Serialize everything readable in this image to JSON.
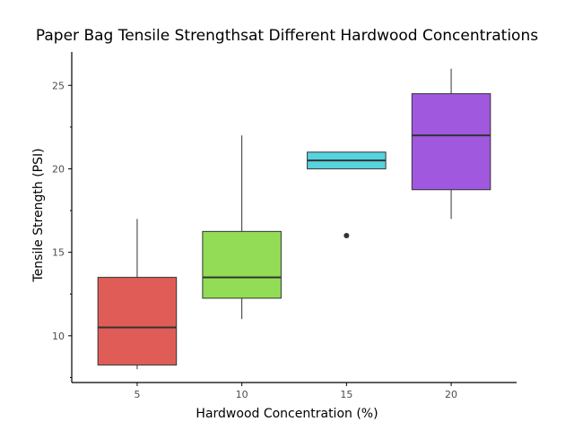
{
  "chart_data": {
    "type": "box",
    "title": "Paper Bag Tensile Strengthsat Different Hardwood Concentrations",
    "xlabel": "Hardwood Concentration (%)",
    "ylabel": "Tensile Strength (PSI)",
    "ylim": [
      7.2,
      27.0
    ],
    "y_major_ticks": [
      10,
      15,
      20,
      25
    ],
    "y_minor_ticks": [
      7.5,
      12.5,
      17.5,
      22.5
    ],
    "categories": [
      "5",
      "10",
      "15",
      "20"
    ],
    "boxes": [
      {
        "category": "5",
        "min": 8.0,
        "q1": 8.25,
        "median": 10.5,
        "q3": 13.5,
        "max": 17.0,
        "outliers": [],
        "color": "#df5d56"
      },
      {
        "category": "10",
        "min": 11.0,
        "q1": 12.25,
        "median": 13.5,
        "q3": 16.25,
        "max": 22.0,
        "outliers": [],
        "color": "#92dd55"
      },
      {
        "category": "15",
        "min": 20.0,
        "q1": 20.0,
        "median": 20.5,
        "q3": 21.0,
        "max": 21.0,
        "outliers": [
          16.0
        ],
        "color": "#57d3de"
      },
      {
        "category": "20",
        "min": 17.0,
        "q1": 18.75,
        "median": 22.0,
        "q3": 24.5,
        "max": 26.0,
        "outliers": [],
        "color": "#a058de"
      }
    ]
  }
}
